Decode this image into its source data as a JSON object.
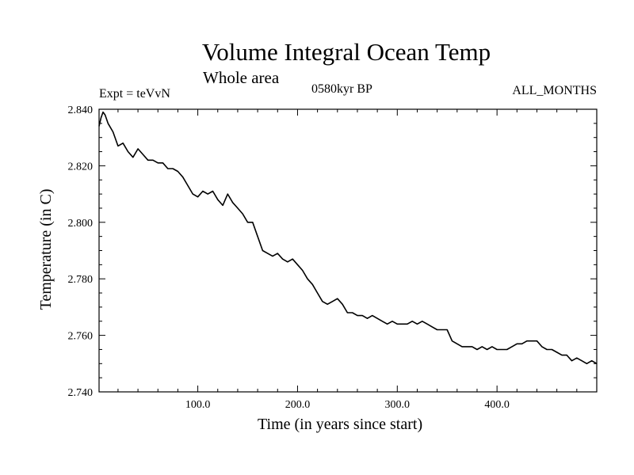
{
  "chart_data": {
    "type": "line",
    "title": "Volume Integral Ocean Temp",
    "subtitle": "Whole area",
    "annotations": {
      "left": "Expt = teVvN",
      "center": "0580kyr BP",
      "right": "ALL_MONTHS"
    },
    "xlabel": "Time (in years since start)",
    "ylabel": "Temperature (in C)",
    "xlim": [
      1,
      500
    ],
    "ylim": [
      2.74,
      2.84
    ],
    "x_ticks": [
      100,
      200,
      300,
      400
    ],
    "x_tick_labels": [
      "100.0",
      "200.0",
      "300.0",
      "400.0"
    ],
    "y_ticks": [
      2.74,
      2.76,
      2.78,
      2.8,
      2.82,
      2.84
    ],
    "y_tick_labels": [
      "2.740",
      "2.760",
      "2.780",
      "2.800",
      "2.820",
      "2.840"
    ],
    "grid": false,
    "line_color": "#000000",
    "series": [
      {
        "x": [
          1,
          3,
          5,
          7,
          10,
          15,
          20,
          25,
          30,
          35,
          40,
          45,
          50,
          55,
          60,
          65,
          70,
          75,
          80,
          85,
          90,
          95,
          100,
          105,
          110,
          115,
          120,
          125,
          130,
          135,
          140,
          145,
          150,
          155,
          160,
          165,
          170,
          175,
          180,
          185,
          190,
          195,
          200,
          205,
          210,
          215,
          220,
          225,
          230,
          235,
          240,
          245,
          250,
          255,
          260,
          265,
          270,
          275,
          280,
          285,
          290,
          295,
          300,
          305,
          310,
          315,
          320,
          325,
          330,
          335,
          340,
          345,
          350,
          355,
          360,
          365,
          370,
          375,
          380,
          385,
          390,
          395,
          400,
          405,
          410,
          415,
          420,
          425,
          430,
          435,
          440,
          445,
          450,
          455,
          460,
          465,
          470,
          475,
          480,
          485,
          490,
          495,
          500
        ],
        "values": [
          2.834,
          2.837,
          2.839,
          2.838,
          2.835,
          2.832,
          2.827,
          2.828,
          2.825,
          2.823,
          2.826,
          2.824,
          2.822,
          2.822,
          2.821,
          2.821,
          2.819,
          2.819,
          2.818,
          2.816,
          2.813,
          2.81,
          2.809,
          2.811,
          2.81,
          2.811,
          2.808,
          2.806,
          2.81,
          2.807,
          2.805,
          2.803,
          2.8,
          2.8,
          2.795,
          2.79,
          2.789,
          2.788,
          2.789,
          2.787,
          2.786,
          2.787,
          2.785,
          2.783,
          2.78,
          2.778,
          2.775,
          2.772,
          2.771,
          2.772,
          2.773,
          2.771,
          2.768,
          2.768,
          2.767,
          2.767,
          2.766,
          2.767,
          2.766,
          2.765,
          2.764,
          2.765,
          2.764,
          2.764,
          2.764,
          2.765,
          2.764,
          2.765,
          2.764,
          2.763,
          2.762,
          2.762,
          2.762,
          2.758,
          2.757,
          2.756,
          2.756,
          2.756,
          2.755,
          2.756,
          2.755,
          2.756,
          2.755,
          2.755,
          2.755,
          2.756,
          2.757,
          2.757,
          2.758,
          2.758,
          2.758,
          2.756,
          2.755,
          2.755,
          2.754,
          2.753,
          2.753,
          2.751,
          2.752,
          2.751,
          2.75,
          2.751,
          2.75
        ]
      }
    ]
  }
}
